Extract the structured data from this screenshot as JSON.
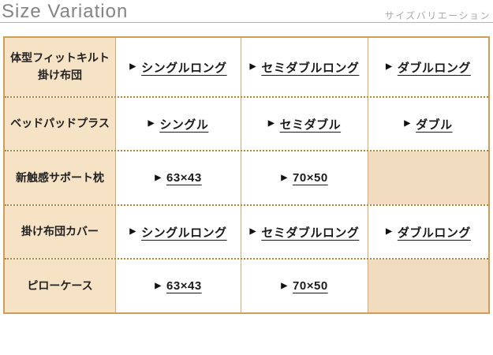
{
  "header": {
    "title": "Size Variation",
    "subtitle": "サイズバリエーション"
  },
  "icons": {
    "link_arrow": "▶"
  },
  "table": {
    "rows": [
      {
        "product": "体型フィットキルト\n掛け布団",
        "sizes": [
          "シングルロング",
          "セミダブルロング",
          "ダブルロング"
        ]
      },
      {
        "product": "ベッドパッドプラス",
        "sizes": [
          "シングル",
          "セミダブル",
          "ダブル"
        ]
      },
      {
        "product": "新触感サポート枕",
        "sizes": [
          "63×43",
          "70×50",
          null
        ]
      },
      {
        "product": "掛け布団カバー",
        "sizes": [
          "シングルロング",
          "セミダブルロング",
          "ダブルロング"
        ]
      },
      {
        "product": "ピローケース",
        "sizes": [
          "63×43",
          "70×50",
          null
        ]
      }
    ]
  },
  "colors": {
    "outer_border": "#cf9d58",
    "inner_vertical_border": "#dcaa6e",
    "dotted_row_separator": "#c5802e",
    "product_cell_bg": "#f6e3c6",
    "empty_cell_bg": "#f2dcc0",
    "title_text": "#848484",
    "subtitle_text": "#a9a9a9",
    "link_text": "#1a1a1a"
  }
}
